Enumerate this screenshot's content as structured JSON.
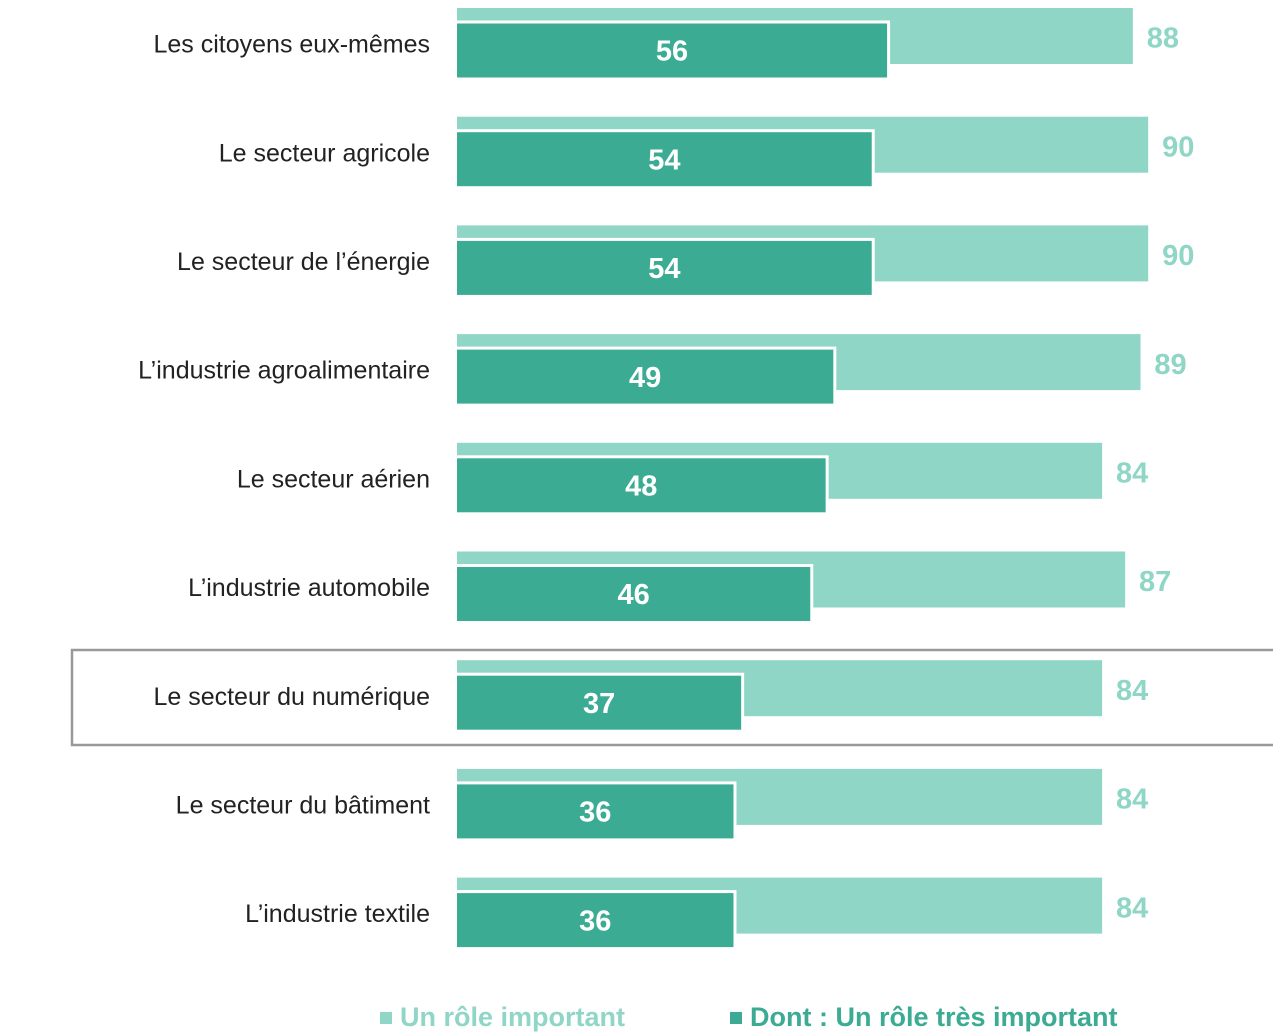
{
  "chart_data": {
    "type": "bar",
    "orientation": "horizontal",
    "categories": [
      "Les citoyens eux-mêmes",
      "Le secteur agricole",
      "Le secteur de l’énergie",
      "L’industrie agroalimentaire",
      "Le secteur aérien",
      "L’industrie automobile",
      "Le secteur du numérique",
      "Le secteur du bâtiment",
      "L’industrie textile"
    ],
    "series": [
      {
        "name": "Un rôle important",
        "color": "#8fd6c6",
        "values": [
          88,
          90,
          90,
          89,
          84,
          87,
          84,
          84,
          84
        ]
      },
      {
        "name": "Dont : Un rôle très important",
        "color": "#3bab93",
        "values": [
          56,
          54,
          54,
          49,
          48,
          46,
          37,
          36,
          36
        ]
      }
    ],
    "xlim": [
      0,
      100
    ],
    "highlight_index": 6,
    "legend": "bottom"
  }
}
